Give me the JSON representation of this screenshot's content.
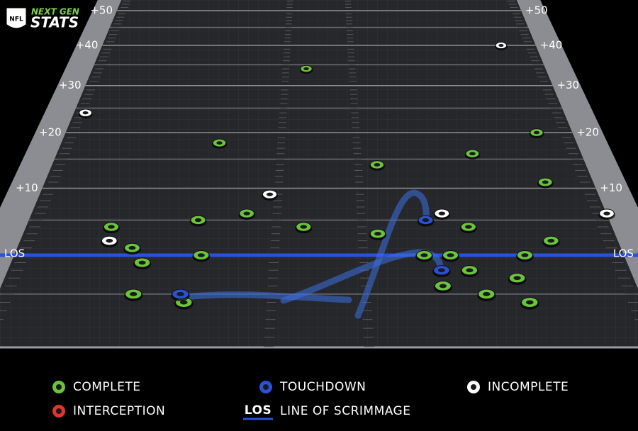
{
  "header": {
    "logo": "NFL",
    "brand_top": "NEXT GEN",
    "brand_bottom": "STATS"
  },
  "chart_data": {
    "type": "scatter",
    "yticks": [
      {
        "value": 0,
        "label": "LOS"
      },
      {
        "value": 10,
        "label": "+10"
      },
      {
        "value": 20,
        "label": "+20"
      },
      {
        "value": 30,
        "label": "+30"
      },
      {
        "value": 40,
        "label": "+40"
      },
      {
        "value": 50,
        "label": "+50"
      }
    ],
    "line_of_scrimmage": {
      "symbol": "LOS",
      "label": "LINE OF SCRIMMAGE",
      "color": "#2a52d6"
    },
    "series": [
      {
        "name": "COMPLETE",
        "color": "#6cc43c",
        "x": [
          -1.5,
          -10.3,
          22.9,
          15.6,
          5.8,
          22.0,
          -18.9,
          -11.1,
          -6.7,
          -1.4,
          5.3,
          13.6,
          20.7,
          -16.5,
          -10.3,
          9.2,
          11.5,
          18.0,
          -15.3,
          12.9,
          16.8,
          10.4,
          13.9,
          17.3,
          -15.4,
          -11.1
        ],
        "values": [
          34,
          18,
          20,
          16,
          14,
          11,
          4,
          5,
          6,
          4,
          3,
          4,
          2,
          1,
          0,
          0,
          0,
          0,
          -1,
          -2,
          -3,
          -4,
          -5,
          -6,
          -5,
          -6
        ]
      },
      {
        "name": "TOUCHDOWN",
        "color": "#2a52d6",
        "x": [
          9.8,
          10.5,
          -11.5
        ],
        "values": [
          5,
          -2,
          -5
        ]
      },
      {
        "name": "INCOMPLETE",
        "color": "#ffffff",
        "x": [
          22.4,
          -25.4,
          -4.7,
          11.4,
          -18.7,
          26.7
        ],
        "values": [
          40,
          24,
          9,
          6,
          2,
          6
        ]
      },
      {
        "name": "INTERCEPTION",
        "color": "#e0352f",
        "x": [],
        "values": []
      }
    ]
  }
}
